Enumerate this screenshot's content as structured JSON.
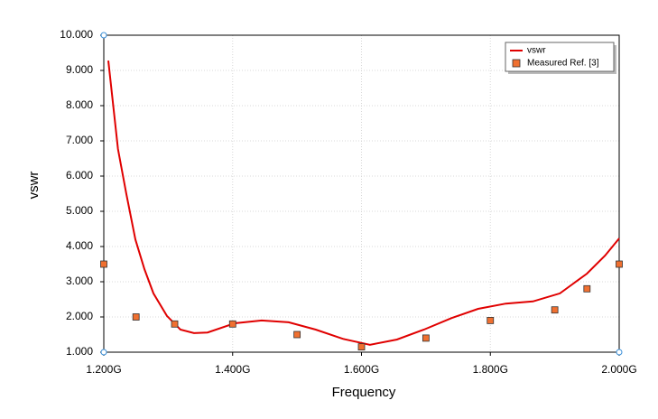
{
  "chart_data": {
    "type": "line",
    "xlabel": "Frequency",
    "ylabel": "vswr",
    "xlim": [
      1.2,
      2.0
    ],
    "xticks": [
      {
        "value": 1.2,
        "label": "1.200G"
      },
      {
        "value": 1.4,
        "label": "1.400G"
      },
      {
        "value": 1.6,
        "label": "1.600G"
      },
      {
        "value": 1.8,
        "label": "1.800G"
      },
      {
        "value": 2.0,
        "label": "2.000G"
      }
    ],
    "ylim": [
      1,
      10
    ],
    "yticks": [
      {
        "value": 1,
        "label": "1.000"
      },
      {
        "value": 2,
        "label": "2.000"
      },
      {
        "value": 3,
        "label": "3.000"
      },
      {
        "value": 4,
        "label": "4.000"
      },
      {
        "value": 5,
        "label": "5.000"
      },
      {
        "value": 6,
        "label": "6.000"
      },
      {
        "value": 7,
        "label": "7.000"
      },
      {
        "value": 8,
        "label": "8.000"
      },
      {
        "value": 9,
        "label": "9.000"
      },
      {
        "value": 10,
        "label": "10.000"
      }
    ],
    "grid": true,
    "legend": "upper right",
    "series": [
      {
        "name": "vswr",
        "color": "#e00000",
        "type": "line",
        "x": [
          1.207,
          1.222,
          1.235,
          1.249,
          1.263,
          1.277,
          1.298,
          1.319,
          1.34,
          1.361,
          1.403,
          1.445,
          1.487,
          1.529,
          1.571,
          1.613,
          1.655,
          1.697,
          1.74,
          1.781,
          1.824,
          1.866,
          1.908,
          1.95,
          1.978,
          2.0
        ],
        "values": [
          9.28,
          6.77,
          5.49,
          4.2,
          3.36,
          2.67,
          2.03,
          1.64,
          1.54,
          1.56,
          1.82,
          1.9,
          1.85,
          1.64,
          1.38,
          1.21,
          1.36,
          1.64,
          1.97,
          2.23,
          2.38,
          2.44,
          2.67,
          3.23,
          3.74,
          4.23
        ]
      },
      {
        "name": "Measured Ref. [3]",
        "color": "#f07030",
        "type": "scatter",
        "x": [
          1.2,
          1.25,
          1.31,
          1.4,
          1.5,
          1.6,
          1.7,
          1.8,
          1.9,
          1.95,
          2.0
        ],
        "values": [
          3.5,
          2.0,
          1.8,
          1.8,
          1.5,
          1.15,
          1.4,
          1.9,
          2.2,
          2.8,
          3.5
        ]
      }
    ]
  }
}
